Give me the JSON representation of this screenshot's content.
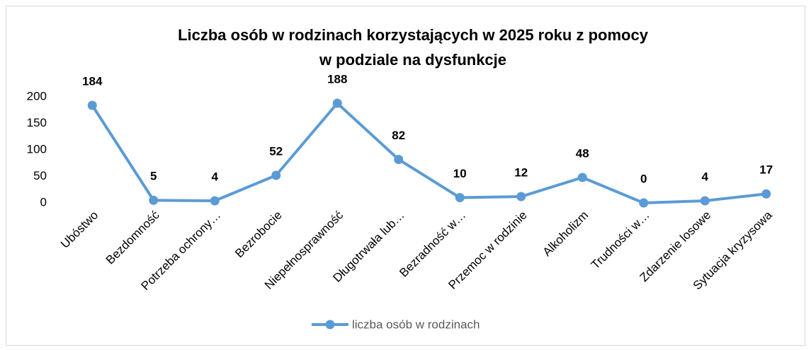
{
  "chart_data": {
    "type": "line",
    "title": [
      "Liczba osób w rodzinach korzystających w 2025 roku z pomocy",
      "w podziale na dysfunkcje"
    ],
    "categories": [
      "Ubóstwo",
      "Bezdomność",
      "Potrzeba ochrony…",
      "Bezrobocie",
      "Niepełnosprawność",
      "Długotrwała lub…",
      "Bezradność w…",
      "Przemoc w rodzinie",
      "Alkoholizm",
      "Trudności w…",
      "Zdarzenie losowe",
      "Sytuacja kryzysowa"
    ],
    "series": [
      {
        "name": "liczba osób w rodzinach",
        "color": "#5b9bd5",
        "values": [
          184,
          5,
          4,
          52,
          188,
          82,
          10,
          12,
          48,
          0,
          4,
          17
        ]
      }
    ],
    "ylim": [
      0,
      200
    ],
    "yticks": [
      0,
      50,
      100,
      150,
      200
    ],
    "grid": false,
    "legend": "bottom"
  }
}
